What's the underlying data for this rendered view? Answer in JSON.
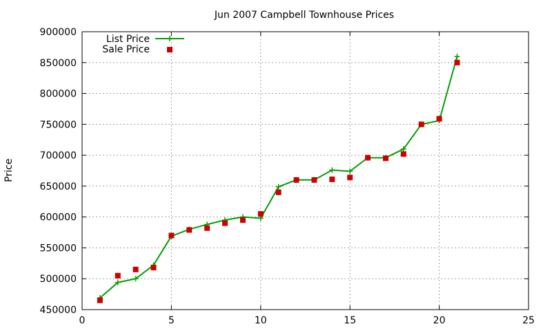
{
  "chart_data": {
    "type": "line",
    "title": "Jun 2007 Campbell Townhouse Prices",
    "xlabel": "",
    "ylabel": "Price",
    "xlim": [
      0,
      25
    ],
    "ylim": [
      450000,
      900000
    ],
    "x_ticks": [
      0,
      5,
      10,
      15,
      20,
      25
    ],
    "y_ticks": [
      450000,
      500000,
      550000,
      600000,
      650000,
      700000,
      750000,
      800000,
      850000,
      900000
    ],
    "grid": true,
    "legend_position": "top-left",
    "series": [
      {
        "name": "List Price",
        "style": "line with plus markers",
        "color": "#00a000",
        "x": [
          1,
          2,
          3,
          4,
          5,
          6,
          7,
          8,
          9,
          10,
          11,
          12,
          13,
          14,
          15,
          16,
          17,
          18,
          19,
          20,
          21
        ],
        "y": [
          469000,
          494000,
          500000,
          522000,
          569000,
          580000,
          588000,
          595000,
          600000,
          598000,
          649000,
          660000,
          660000,
          676000,
          674000,
          696000,
          696000,
          710000,
          750000,
          756000,
          860000
        ]
      },
      {
        "name": "Sale Price",
        "style": "square points",
        "color": "#cc0000",
        "x": [
          1,
          2,
          3,
          4,
          5,
          6,
          7,
          8,
          9,
          10,
          11,
          12,
          13,
          14,
          15,
          16,
          17,
          18,
          19,
          20,
          21
        ],
        "y": [
          465000,
          505000,
          515000,
          518000,
          570000,
          579000,
          582000,
          590000,
          595000,
          605000,
          640000,
          660000,
          660000,
          661000,
          664000,
          696000,
          695000,
          702000,
          750000,
          759000,
          850000
        ]
      }
    ]
  }
}
